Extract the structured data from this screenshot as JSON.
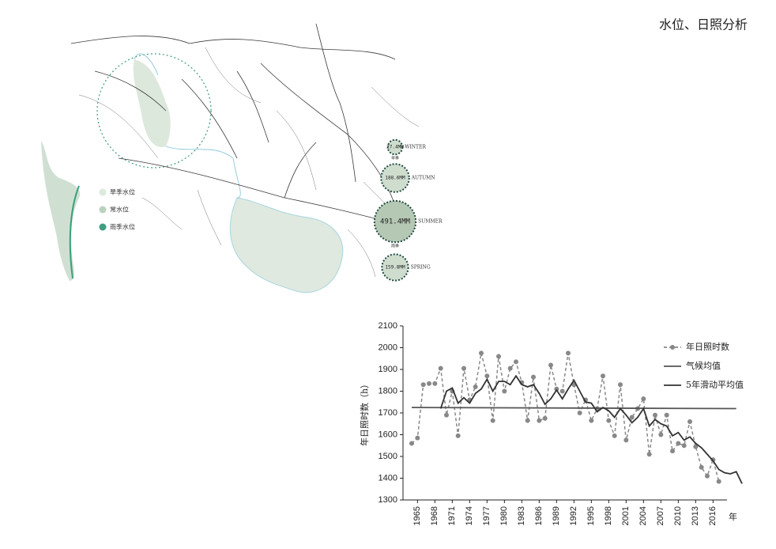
{
  "title": "水位、日照分析",
  "map": {
    "legend": [
      "旱季水位",
      "常水位",
      "雨季水位"
    ],
    "seasons": [
      {
        "name": "WINTER",
        "value": 27.4,
        "value_label": "27.4MM",
        "note": "旱季"
      },
      {
        "name": "AUTUMN",
        "value": 188.6,
        "value_label": "188.6MM"
      },
      {
        "name": "SUMMER",
        "value": 491.4,
        "value_label": "491.4MM",
        "note": "雨季"
      },
      {
        "name": "SPRING",
        "value": 159.8,
        "value_label": "159.8MM"
      }
    ]
  },
  "chart_data": {
    "type": "line",
    "y_label": "年日照时数（h）",
    "x_label": "年",
    "xlim": [
      1962.5,
      2022.5
    ],
    "xticks": [
      1965,
      1968,
      1971,
      1974,
      1977,
      1980,
      1983,
      1986,
      1989,
      1992,
      1995,
      1998,
      2001,
      2004,
      2007,
      2010,
      2013,
      2016
    ],
    "ylim": [
      1300,
      2100
    ],
    "yticks": [
      1300,
      1400,
      1500,
      1600,
      1700,
      1800,
      1900,
      2000,
      2100
    ],
    "series": [
      {
        "name": "年日照时数",
        "color": "#888888",
        "dashed": true,
        "markers": true,
        "x": [
          1964,
          1965,
          1966,
          1967,
          1968,
          1969,
          1970,
          1971,
          1972,
          1973,
          1974,
          1975,
          1976,
          1977,
          1978,
          1979,
          1980,
          1981,
          1982,
          1983,
          1984,
          1985,
          1986,
          1987,
          1988,
          1989,
          1990,
          1991,
          1992,
          1993,
          1994,
          1995,
          1996,
          1997,
          1998,
          1999,
          2000,
          2001,
          2002,
          2003,
          2004,
          2005,
          2006,
          2007,
          2008,
          2009,
          2010,
          2011,
          2012,
          2013,
          2014,
          2015,
          2016,
          2017
        ],
        "values": [
          1560,
          1585,
          1830,
          1835,
          1835,
          1905,
          1690,
          1800,
          1595,
          1905,
          1760,
          1820,
          1975,
          1870,
          1665,
          1960,
          1800,
          1905,
          1935,
          1840,
          1665,
          1865,
          1665,
          1675,
          1920,
          1810,
          1800,
          1975,
          1830,
          1700,
          1760,
          1665,
          1720,
          1870,
          1665,
          1595,
          1830,
          1575,
          1680,
          1720,
          1765,
          1510,
          1690,
          1600,
          1690,
          1525,
          1560,
          1550,
          1660,
          1545,
          1450,
          1410,
          1485,
          1385
        ]
      },
      {
        "name": "气候均值",
        "color": "#555555",
        "x": [
          1964,
          2020
        ],
        "values": [
          1725,
          1720
        ]
      },
      {
        "name": "5年滑动平均值",
        "color": "#333333",
        "x": [
          1969,
          1970,
          1971,
          1972,
          1973,
          1974,
          1975,
          1976,
          1977,
          1978,
          1979,
          1980,
          1981,
          1982,
          1983,
          1984,
          1985,
          1986,
          1987,
          1988,
          1989,
          1990,
          1991,
          1992,
          1993,
          1994,
          1995,
          1996,
          1997,
          1998,
          1999,
          2000,
          2001,
          2002,
          2003,
          2004,
          2005,
          2006,
          2007,
          2008,
          2009,
          2010,
          2011,
          2012,
          2013,
          2014,
          2015,
          2016,
          2017,
          2018,
          2019,
          2020,
          2021
        ],
        "values": [
          1720,
          1800,
          1815,
          1745,
          1770,
          1745,
          1790,
          1810,
          1855,
          1800,
          1845,
          1845,
          1830,
          1870,
          1830,
          1820,
          1830,
          1790,
          1740,
          1765,
          1805,
          1765,
          1810,
          1850,
          1800,
          1750,
          1745,
          1705,
          1725,
          1710,
          1680,
          1720,
          1690,
          1655,
          1680,
          1720,
          1640,
          1670,
          1650,
          1640,
          1595,
          1610,
          1575,
          1590,
          1560,
          1540,
          1510,
          1480,
          1440,
          1425,
          1420,
          1430,
          1375
        ]
      }
    ]
  }
}
